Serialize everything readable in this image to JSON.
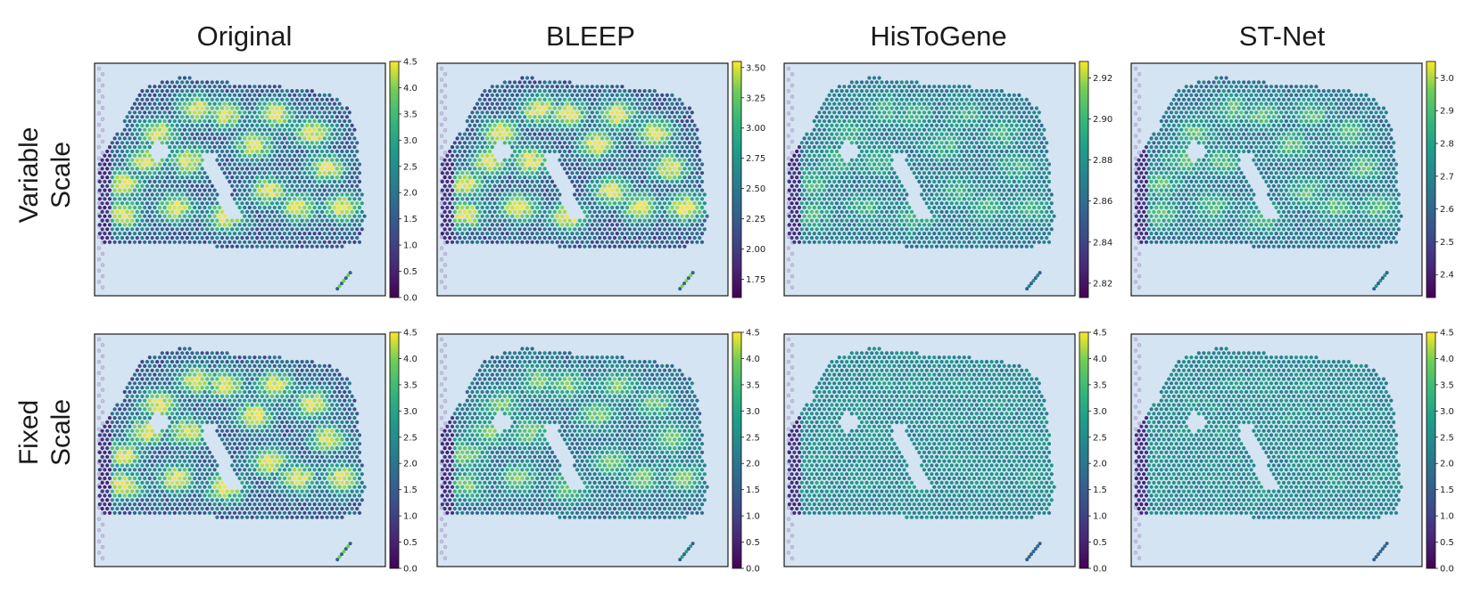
{
  "chart_data": {
    "type": "heatmap",
    "description_columns": [
      "Original",
      "BLEEP",
      "HisToGene",
      "ST-Net"
    ],
    "row_labels": [
      [
        "Variable",
        "Scale"
      ],
      [
        "Fixed",
        "Scale"
      ]
    ],
    "colormap": "viridis",
    "colors": {
      "background": "#d5e4f2",
      "tissue_base": "#52507e",
      "frame": "#1a1a1a"
    },
    "panels": [
      {
        "row": 0,
        "col": 0,
        "title": "Original",
        "vmin": 0.0,
        "vmax": 4.5,
        "ticks": [
          "0.0",
          "0.5",
          "1.0",
          "1.5",
          "2.0",
          "2.5",
          "3.0",
          "3.5",
          "4.0",
          "4.5"
        ],
        "signal": 0.95
      },
      {
        "row": 0,
        "col": 1,
        "title": "BLEEP",
        "vmin": 1.6,
        "vmax": 3.55,
        "ticks": [
          "1.75",
          "2.00",
          "2.25",
          "2.50",
          "2.75",
          "3.00",
          "3.25",
          "3.50"
        ],
        "signal": 1.0
      },
      {
        "row": 0,
        "col": 2,
        "title": "HisToGene",
        "vmin": 2.813,
        "vmax": 2.928,
        "ticks": [
          "2.82",
          "2.84",
          "2.86",
          "2.88",
          "2.90",
          "2.92"
        ],
        "signal": 0.35
      },
      {
        "row": 0,
        "col": 3,
        "title": "ST-Net",
        "vmin": 2.33,
        "vmax": 3.05,
        "ticks": [
          "2.4",
          "2.5",
          "2.6",
          "2.7",
          "2.8",
          "2.9",
          "3.0"
        ],
        "signal": 0.45
      },
      {
        "row": 1,
        "col": 0,
        "title": "Original",
        "vmin": 0.0,
        "vmax": 4.5,
        "ticks": [
          "0.0",
          "0.5",
          "1.0",
          "1.5",
          "2.0",
          "2.5",
          "3.0",
          "3.5",
          "4.0",
          "4.5"
        ],
        "signal": 0.95
      },
      {
        "row": 1,
        "col": 1,
        "title": "BLEEP",
        "vmin": 0.0,
        "vmax": 4.5,
        "ticks": [
          "0.0",
          "0.5",
          "1.0",
          "1.5",
          "2.0",
          "2.5",
          "3.0",
          "3.5",
          "4.0",
          "4.5"
        ],
        "signal": 0.55
      },
      {
        "row": 1,
        "col": 2,
        "title": "HisToGene",
        "vmin": 0.0,
        "vmax": 4.5,
        "ticks": [
          "0.0",
          "0.5",
          "1.0",
          "1.5",
          "2.0",
          "2.5",
          "3.0",
          "3.5",
          "4.0",
          "4.5"
        ],
        "signal": 0.1
      },
      {
        "row": 1,
        "col": 3,
        "title": "ST-Net",
        "vmin": 0.0,
        "vmax": 4.5,
        "ticks": [
          "0.0",
          "0.5",
          "1.0",
          "1.5",
          "2.0",
          "2.5",
          "3.0",
          "3.5",
          "4.0",
          "4.5"
        ],
        "signal": 0.1
      }
    ],
    "grid": false,
    "legend": "colorbar right of each panel"
  }
}
